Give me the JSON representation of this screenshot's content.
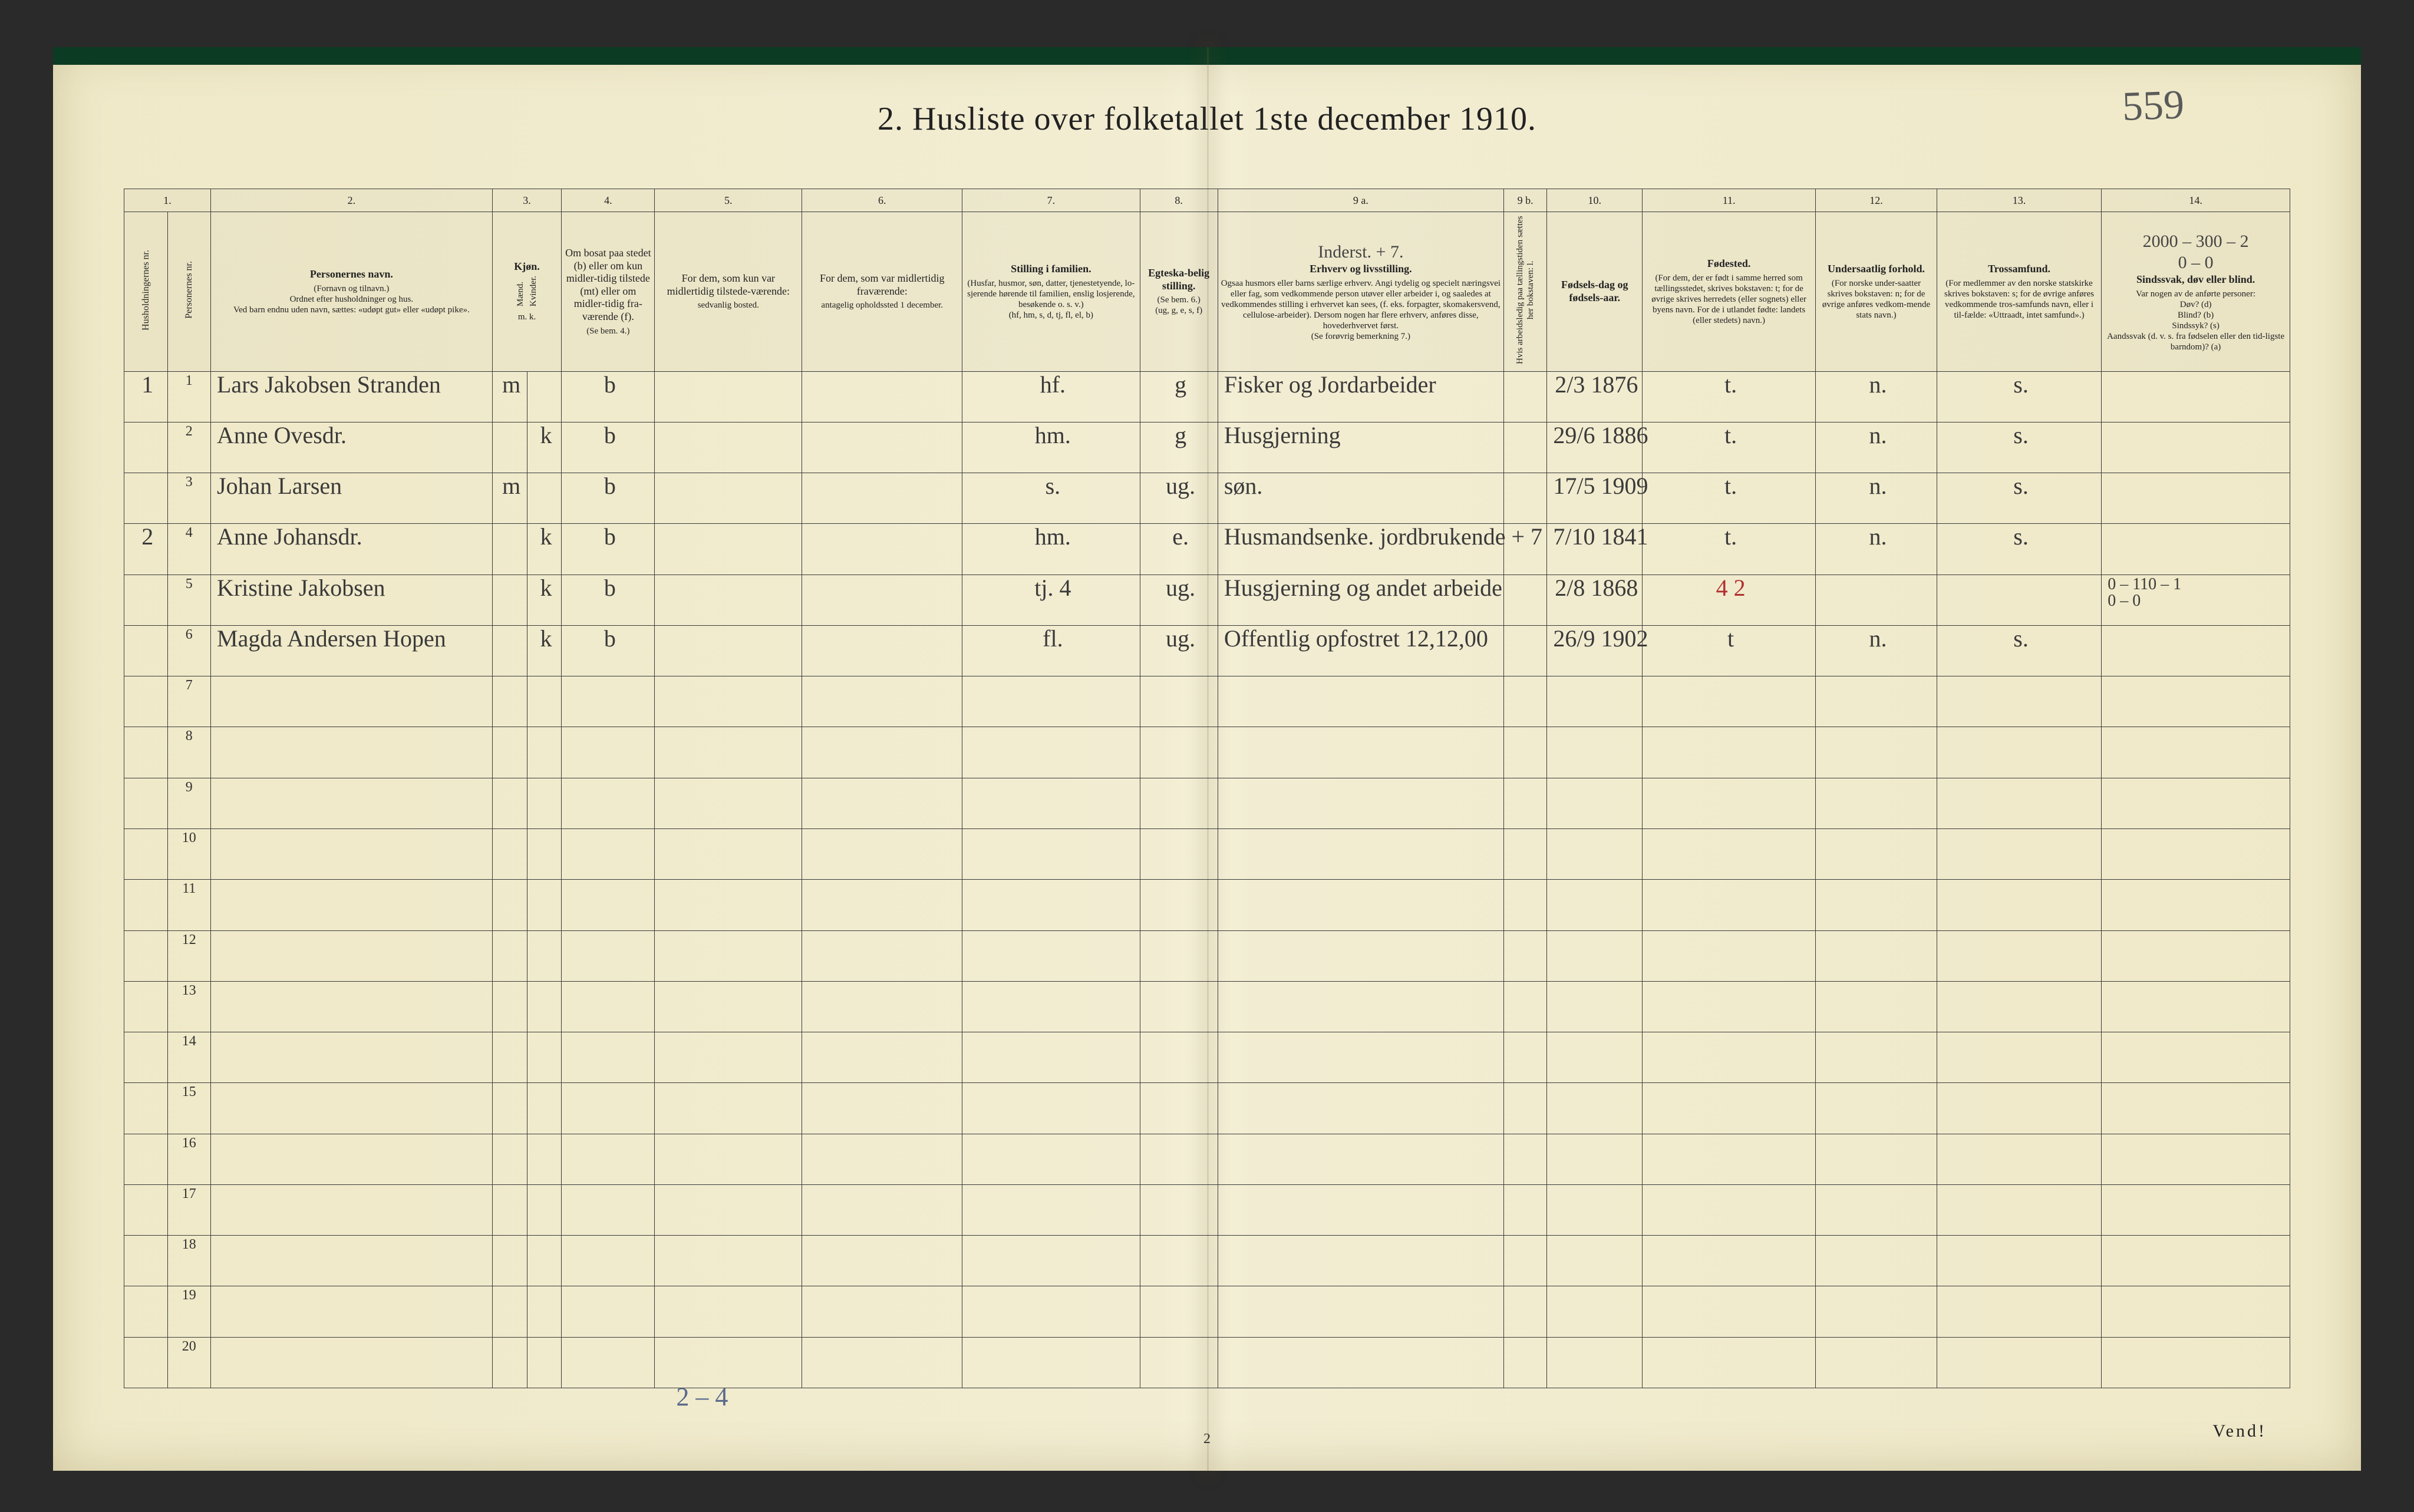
{
  "handwritten_page_no": "559",
  "title": "2.  Husliste over folketallet 1ste december 1910.",
  "footer": "Vend!",
  "page_number": "2",
  "tally": "2 – 4",
  "column_numbers": [
    "1.",
    "",
    "2.",
    "3.",
    "",
    "4.",
    "5.",
    "6.",
    "7.",
    "8.",
    "9 a.",
    "9 b.",
    "10.",
    "11.",
    "12.",
    "13.",
    "14."
  ],
  "headers": {
    "c1": "Husholdningernes nr.",
    "c1b": "Personernes nr.",
    "c2": "Personernes navn.",
    "c2_small": "(Fornavn og tilnavn.)\nOrdnet efter husholdninger og hus.\nVed barn endnu uden navn, sættes: «udøpt gut» eller «udøpt pike».",
    "c3": "Kjøn.",
    "c3a": "Mænd.",
    "c3b": "Kvinder.",
    "c3_small": "m.  k.",
    "c4": "Om bosat paa stedet (b) eller om kun midler-tidig tilstede (mt) eller om midler-tidig fra-værende (f).",
    "c4_small": "(Se bem. 4.)",
    "c5": "For dem, som kun var midlertidig tilstede-værende:",
    "c5_small": "sedvanlig bosted.",
    "c6": "For dem, som var midlertidig fraværende:",
    "c6_small": "antagelig opholdssted 1 december.",
    "c7": "Stilling i familien.",
    "c7_small": "(Husfar, husmor, søn, datter, tjenestetyende, lo-sjerende hørende til familien, enslig losjerende, besøkende o. s. v.)\n(hf, hm, s, d, tj, fl, el, b)",
    "c8": "Egteska-belig stilling.",
    "c8_small": "(Se bem. 6.)\n(ug, g, e, s, f)",
    "c9a": "Erhverv og livsstilling.",
    "c9a_small": "Ogsaa husmors eller barns særlige erhverv. Angi tydelig og specielt næringsvei eller fag, som vedkommende person utøver eller arbeider i, og saaledes at vedkommendes stilling i erhvervet kan sees, (f. eks. forpagter, skomakersvend, cellulose-arbeider). Dersom nogen har flere erhverv, anføres disse, hovederhvervet først.\n(Se forøvrig bemerkning 7.)",
    "c9a_annot": "Inderst.   + 7.",
    "c9b": "Hvis arbeidsledig paa tællingstiden sættes her bokstaven: l.",
    "c10": "Fødsels-dag og fødsels-aar.",
    "c11": "Fødested.",
    "c11_small": "(For dem, der er født i samme herred som tællingsstedet, skrives bokstaven: t; for de øvrige skrives herredets (eller sognets) eller byens navn. For de i utlandet fødte: landets (eller stedets) navn.)",
    "c12": "Undersaatlig forhold.",
    "c12_small": "(For norske under-saatter skrives bokstaven: n; for de øvrige anføres vedkom-mende stats navn.)",
    "c13": "Trossamfund.",
    "c13_small": "(For medlemmer av den norske statskirke skrives bokstaven: s; for de øvrige anføres vedkommende tros-samfunds navn, eller i til-fælde: «Uttraadt, intet samfund».)",
    "c14": "Sindssvak, døv eller blind.",
    "c14_small": "Var nogen av de anførte personer:\nDøv?        (d)\nBlind?      (b)\nSindssyk?  (s)\nAandssvak (d. v. s. fra fødselen eller den tid-ligste barndom)?  (a)",
    "c14_annot": "2000 – 300 – 2\n0 – 0"
  },
  "rows": [
    {
      "hh": "1",
      "p": "1",
      "name": "Lars Jakobsen Stranden",
      "m": "m",
      "k": "",
      "res": "b",
      "c5": "",
      "c6": "",
      "fam": "hf.",
      "eg": "g",
      "erv": "Fisker og Jordarbeider",
      "l": "",
      "dob": "2/3 1876",
      "born": "t.",
      "nat": "n.",
      "rel": "s.",
      "c14": ""
    },
    {
      "hh": "",
      "p": "2",
      "name": "Anne Ovesdr.",
      "m": "",
      "k": "k",
      "res": "b",
      "c5": "",
      "c6": "",
      "fam": "hm.",
      "eg": "g",
      "erv": "Husgjerning",
      "l": "",
      "dob": "29/6 1886",
      "born": "t.",
      "nat": "n.",
      "rel": "s.",
      "c14": ""
    },
    {
      "hh": "",
      "p": "3",
      "name": "Johan Larsen",
      "m": "m",
      "k": "",
      "res": "b",
      "c5": "",
      "c6": "",
      "fam": "s.",
      "eg": "ug.",
      "erv": "søn.",
      "l": "",
      "dob": "17/5 1909",
      "born": "t.",
      "nat": "n.",
      "rel": "s.",
      "c14": ""
    },
    {
      "hh": "2",
      "p": "4",
      "name": "Anne Johansdr.",
      "m": "",
      "k": "k",
      "res": "b",
      "c5": "",
      "c6": "",
      "fam": "hm.",
      "eg": "e.",
      "erv": "Husmandsenke.  jordbrukende  + 7",
      "l": "",
      "dob": "7/10 1841",
      "born": "t.",
      "nat": "n.",
      "rel": "s.",
      "c14": ""
    },
    {
      "hh": "",
      "p": "5",
      "name": "Kristine Jakobsen",
      "m": "",
      "k": "k",
      "res": "b",
      "c5": "",
      "c6": "",
      "fam": "tj.   4",
      "eg": "ug.",
      "erv": "Husgjerning og andet arbeide",
      "l": "",
      "dob": "2/8 1868",
      "born": "4   2",
      "born_red": true,
      "nat": "",
      "rel": "",
      "c14": "0 – 110 – 1\n0 – 0"
    },
    {
      "hh": "",
      "p": "6",
      "name": "Magda Andersen Hopen",
      "m": "",
      "k": "k",
      "res": "b",
      "c5": "",
      "c6": "",
      "fam": "fl.",
      "eg": "ug.",
      "erv": "Offentlig opfostret 12,12,00",
      "l": "",
      "dob": "26/9 1902",
      "born": "t",
      "nat": "n.",
      "rel": "s.",
      "c14": ""
    }
  ],
  "colwidths": {
    "c1": "2.0%",
    "c1b": "2.0%",
    "c2": "13%",
    "c3a": "1.6%",
    "c3b": "1.6%",
    "c4": "4.3%",
    "c5": "6.8%",
    "c6": "7.4%",
    "c7": "8.2%",
    "c8": "3.6%",
    "c9a": "13.2%",
    "c9b": "2.0%",
    "c10": "4.4%",
    "c11": "8.0%",
    "c12": "5.6%",
    "c13": "7.6%",
    "c14": "8.7%"
  },
  "colors": {
    "paper": "#f1ecd0",
    "ink": "#222222",
    "hand": "#3a3a3a",
    "red": "#b03030",
    "topbar": "#0c3b24"
  }
}
